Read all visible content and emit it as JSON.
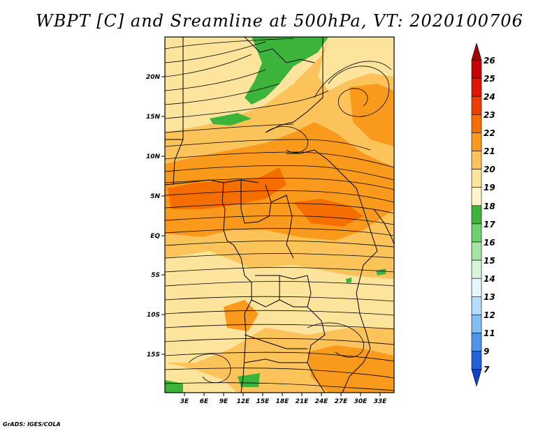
{
  "title": "WBPT [C] and Sreamline at 500hPa, VT: 2020100706",
  "footer": "GrADS: IGES/COLA",
  "map": {
    "lat_labels": [
      "20N",
      "15N",
      "10N",
      "5N",
      "EQ",
      "5S",
      "10S",
      "15S"
    ],
    "lon_labels": [
      "3E",
      "6E",
      "9E",
      "12E",
      "15E",
      "18E",
      "21E",
      "24E",
      "27E",
      "30E",
      "33E"
    ]
  },
  "colorbar": {
    "levels": [
      "26",
      "25",
      "24",
      "23",
      "22",
      "21",
      "20",
      "19",
      "18",
      "17",
      "16",
      "15",
      "14",
      "13",
      "12",
      "11",
      "9",
      "7"
    ],
    "colors": [
      "#a50000",
      "#c80000",
      "#e11400",
      "#f03c00",
      "#f56e00",
      "#f99a1c",
      "#fbc35a",
      "#fde49c",
      "#fff5c8",
      "#3cb43c",
      "#6ed26e",
      "#a5e6a5",
      "#d7f5d7",
      "#e6f5ff",
      "#b4dcff",
      "#82bef5",
      "#4b96eb",
      "#2064d7",
      "#0a46c3"
    ],
    "colors_note": "top triangle, then segments top to bottom, then bottom triangle"
  }
}
